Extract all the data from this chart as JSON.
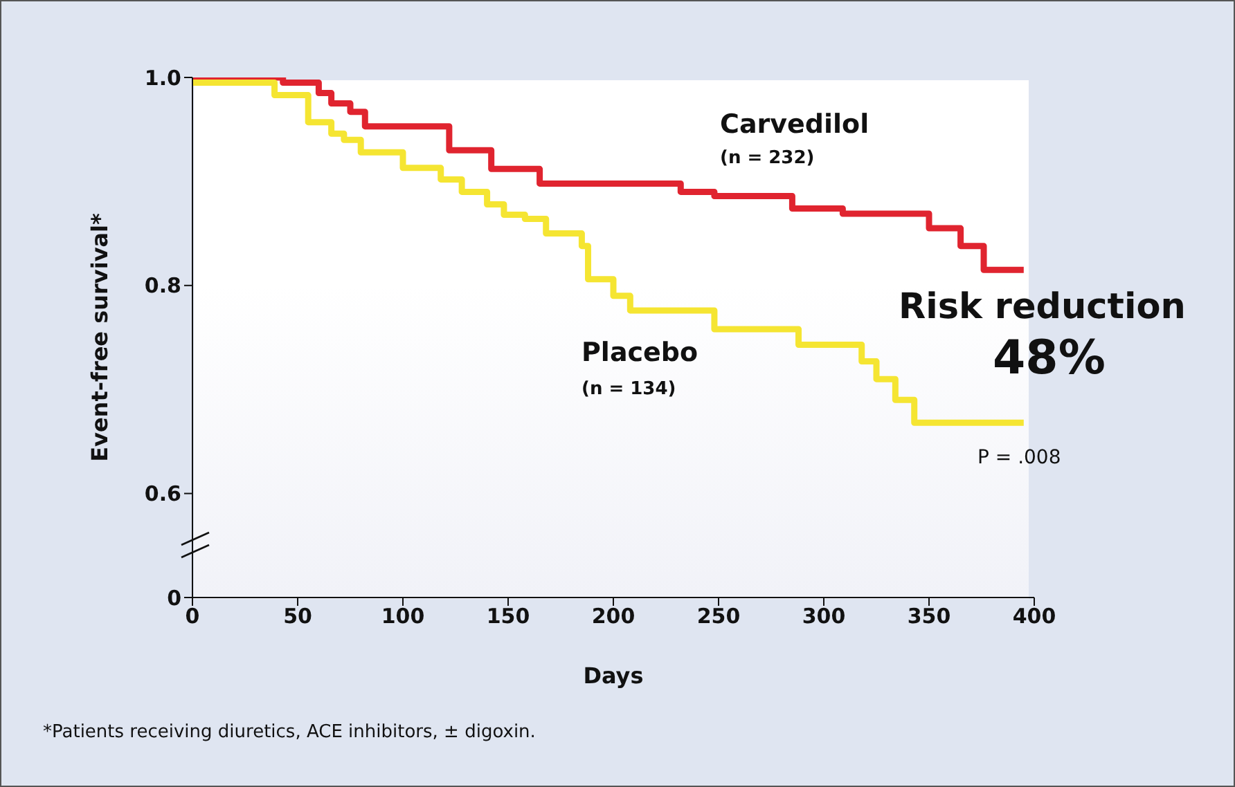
{
  "chart_data": {
    "type": "step",
    "xlabel": "Days",
    "ylabel": "Event-free survival*",
    "xlim": [
      0,
      400
    ],
    "xticks": [
      0,
      50,
      100,
      150,
      200,
      250,
      300,
      350,
      400
    ],
    "ylim": [
      0.5,
      1
    ],
    "yticks": [
      {
        "value": 0.5,
        "label": "0"
      },
      0.6,
      0.8,
      {
        "value": 1,
        "label": "1.0"
      }
    ],
    "marker": "none",
    "line_style": "solid",
    "series": [
      {
        "name": "Carvedilol",
        "color": "#e0242f",
        "x": [
          0,
          43,
          60,
          66,
          75,
          82,
          122,
          142,
          165,
          232,
          248,
          285,
          309,
          350,
          365,
          376,
          395
        ],
        "values": [
          1.0,
          0.995,
          0.985,
          0.975,
          0.967,
          0.953,
          0.93,
          0.912,
          0.898,
          0.89,
          0.886,
          0.874,
          0.869,
          0.855,
          0.838,
          0.815,
          0.815
        ]
      },
      {
        "name": "Placebo",
        "color": "#f5e532",
        "x": [
          0,
          39,
          55,
          66,
          72,
          80,
          100,
          118,
          128,
          140,
          148,
          158,
          168,
          185,
          188,
          200,
          208,
          248,
          288,
          318,
          325,
          334,
          343,
          395
        ],
        "values": [
          0.995,
          0.983,
          0.957,
          0.946,
          0.94,
          0.928,
          0.913,
          0.902,
          0.89,
          0.878,
          0.868,
          0.864,
          0.85,
          0.838,
          0.806,
          0.79,
          0.776,
          0.758,
          0.743,
          0.727,
          0.71,
          0.69,
          0.668,
          0.668
        ]
      }
    ],
    "annotations": [
      "(n = 232)",
      "(n = 134)",
      "Risk reduction",
      "48%",
      "P = .008",
      "*Patients receiving diuretics, ACE inhibitors, ± digoxin."
    ]
  }
}
